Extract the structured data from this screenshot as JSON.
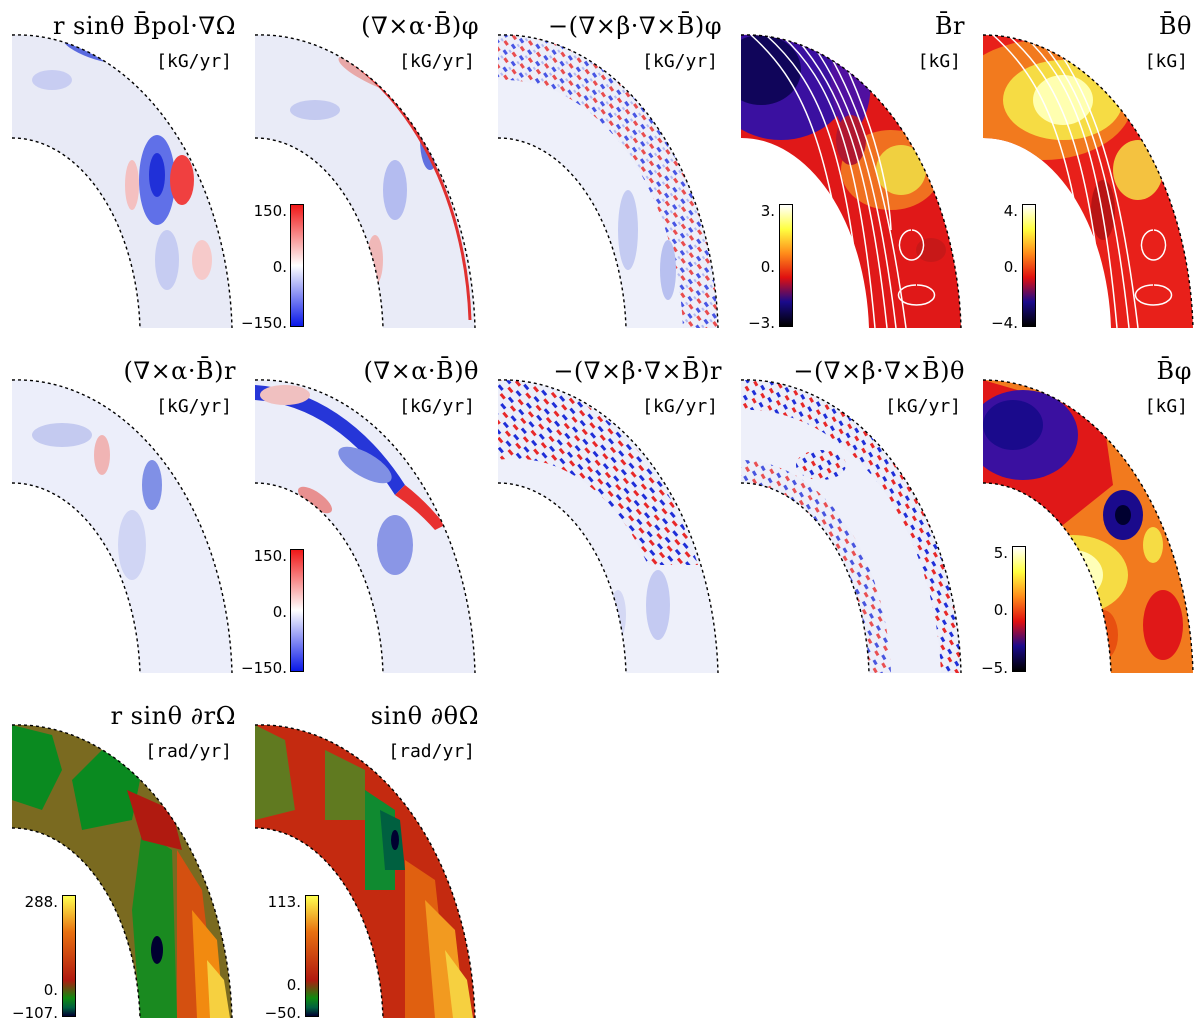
{
  "panels": [
    {
      "id": "p1",
      "title": "r sinθ B̄pol·∇Ω",
      "unit": "[kG/yr]",
      "cmap": "bwr"
    },
    {
      "id": "p2",
      "title": "(∇×α·B̄)φ",
      "unit": "[kG/yr]",
      "cmap": "bwr",
      "colorbar": {
        "max": "150.",
        "mid": "0.",
        "min": "−150."
      }
    },
    {
      "id": "p3",
      "title": "−(∇×β·∇×B̄)φ",
      "unit": "[kG/yr]",
      "cmap": "bwr"
    },
    {
      "id": "p4",
      "title": "B̄r",
      "unit": "[kG]",
      "cmap": "heat",
      "colorbar": {
        "max": "3.",
        "mid": "0.",
        "min": "−3."
      }
    },
    {
      "id": "p5",
      "title": "B̄θ",
      "unit": "[kG]",
      "cmap": "heat",
      "colorbar": {
        "max": "4.",
        "mid": "0.",
        "min": "−4."
      }
    },
    {
      "id": "p6",
      "title": "(∇×α·B̄)r",
      "unit": "[kG/yr]",
      "cmap": "bwr"
    },
    {
      "id": "p7",
      "title": "(∇×α·B̄)θ",
      "unit": "[kG/yr]",
      "cmap": "bwr",
      "colorbar": {
        "max": "150.",
        "mid": "0.",
        "min": "−150."
      }
    },
    {
      "id": "p8",
      "title": "−(∇×β·∇×B̄)r",
      "unit": "[kG/yr]",
      "cmap": "bwr"
    },
    {
      "id": "p9",
      "title": "−(∇×β·∇×B̄)θ",
      "unit": "[kG/yr]",
      "cmap": "bwr"
    },
    {
      "id": "p10",
      "title": "B̄φ",
      "unit": "[kG]",
      "cmap": "heat",
      "colorbar": {
        "max": "5.",
        "mid": "0.",
        "min": "−5."
      }
    },
    {
      "id": "p11",
      "title": "r sinθ ∂rΩ",
      "unit": "[rad/yr]",
      "cmap": "omega",
      "colorbar": {
        "max": "288.",
        "mid": "0.",
        "min": "−107."
      }
    },
    {
      "id": "p12",
      "title": "sinθ ∂θΩ",
      "unit": "[rad/yr]",
      "cmap": "omega",
      "colorbar": {
        "max": "113.",
        "mid": "0.",
        "min": "−50."
      }
    }
  ],
  "colors": {
    "bwr": [
      "#0a18e8",
      "#ffffff",
      "#f01818"
    ],
    "heat": [
      "#000000",
      "#1a0a8c",
      "#e01010",
      "#ff8c1a",
      "#ffff40",
      "#ffffff"
    ],
    "omega": [
      "#000030",
      "#006040",
      "#108a10",
      "#b01a10",
      "#e87010",
      "#ffff50"
    ]
  }
}
